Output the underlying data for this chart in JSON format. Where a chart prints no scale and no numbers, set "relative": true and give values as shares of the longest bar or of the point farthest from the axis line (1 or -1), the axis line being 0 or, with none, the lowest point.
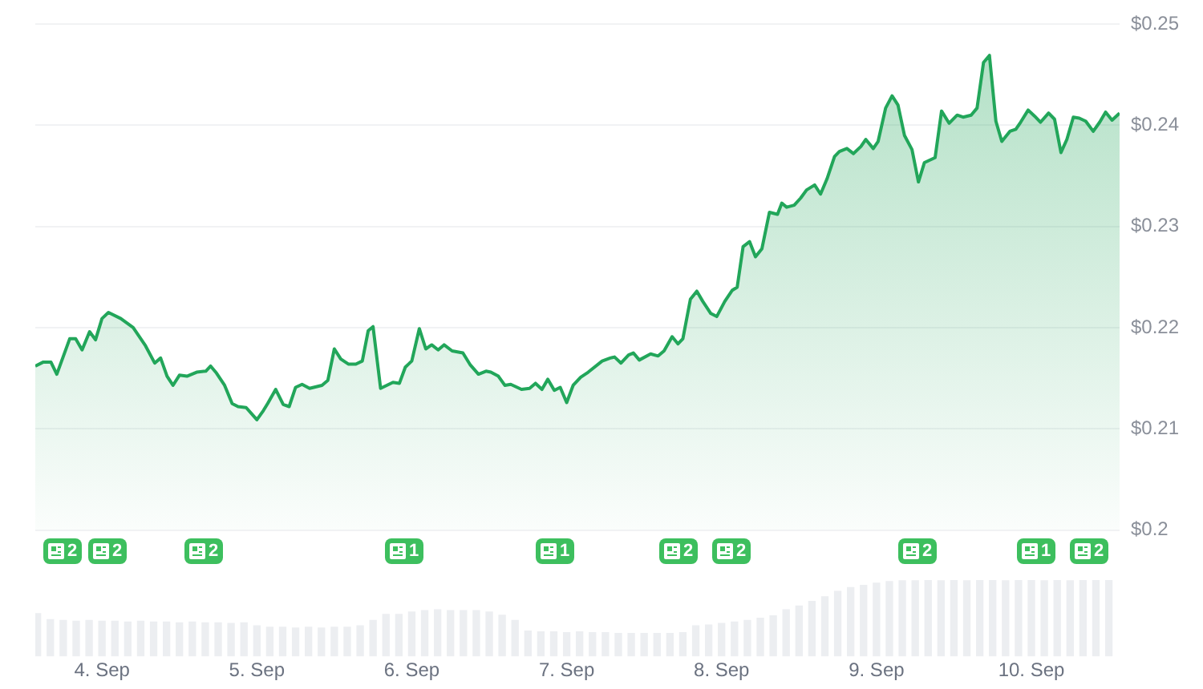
{
  "chart_data": [
    {
      "type": "area",
      "x": [
        "--09-03T13:40",
        "--09-03T14:55",
        "--09-03T16:05",
        "--09-03T17:00",
        "--09-03T19:00",
        "--09-03T19:55",
        "--09-03T20:55",
        "--09-03T22:05",
        "--09-03T23:00",
        "--09-04T00:00",
        "--09-04T01:00",
        "--09-04T02:55",
        "--09-04T04:50",
        "--09-04T06:45",
        "--09-04T08:10",
        "--09-04T09:05",
        "--09-04T10:05",
        "--09-04T11:00",
        "--09-04T12:00",
        "--09-04T13:10",
        "--09-04T14:40",
        "--09-04T16:05",
        "--09-04T16:50",
        "--09-04T17:45",
        "--09-04T19:00",
        "--09-04T20:10",
        "--09-04T21:05",
        "--09-04T22:20",
        "--09-05T00:00",
        "--09-05T01:00",
        "--09-05T01:40",
        "--09-05T02:55",
        "--09-05T04:05",
        "--09-05T05:00",
        "--09-05T06:00",
        "--09-05T07:00",
        "--09-05T08:10",
        "--09-05T10:05",
        "--09-05T11:00",
        "--09-05T12:00",
        "--09-05T13:00",
        "--09-05T14:10",
        "--09-05T15:20",
        "--09-05T16:20",
        "--09-05T17:15",
        "--09-05T18:00",
        "--09-05T19:10",
        "--09-05T21:05",
        "--09-05T22:05",
        "--09-05T23:00",
        "--09-06T00:00",
        "--09-06T01:10",
        "--09-06T02:10",
        "--09-06T03:05",
        "--09-06T04:05",
        "--09-06T05:00",
        "--09-06T06:15",
        "--09-06T07:55",
        "--09-06T09:05",
        "--09-06T10:20",
        "--09-06T11:30",
        "--09-06T12:15",
        "--09-06T13:25",
        "--09-06T14:25",
        "--09-06T15:20",
        "--09-06T17:00",
        "--09-06T18:15",
        "--09-06T19:10",
        "--09-06T20:10",
        "--09-06T21:05",
        "--09-06T22:05",
        "--09-06T23:00",
        "--09-07T00:00",
        "--09-07T01:00",
        "--09-07T02:10",
        "--09-07T03:20",
        "--09-07T05:30",
        "--09-07T06:45",
        "--09-07T07:25",
        "--09-07T08:25",
        "--09-07T09:35",
        "--09-07T10:20",
        "--09-07T11:15",
        "--09-07T13:00",
        "--09-07T14:10",
        "--09-07T15:05",
        "--09-07T16:20",
        "--09-07T17:15",
        "--09-07T18:00",
        "--09-07T19:10",
        "--09-07T20:10",
        "--09-07T21:05",
        "--09-07T22:20",
        "--09-07T23:15",
        "--09-08T00:30",
        "--09-08T01:40",
        "--09-08T02:25",
        "--09-08T03:20",
        "--09-08T04:20",
        "--09-08T05:15",
        "--09-08T06:15",
        "--09-08T07:25",
        "--09-08T08:40",
        "--09-08T09:20",
        "--09-08T10:05",
        "--09-08T11:15",
        "--09-08T12:15",
        "--09-08T13:10",
        "--09-08T14:25",
        "--09-08T15:20",
        "--09-08T16:20",
        "--09-08T17:30",
        "--09-08T18:15",
        "--09-08T19:25",
        "--09-08T20:25",
        "--09-08T21:35",
        "--09-08T22:20",
        "--09-08T23:30",
        "--09-09T00:15",
        "--09-09T01:25",
        "--09-09T02:25",
        "--09-09T03:20",
        "--09-09T04:20",
        "--09-09T05:30",
        "--09-09T06:30",
        "--09-09T07:25",
        "--09-09T09:05",
        "--09-09T10:05",
        "--09-09T11:15",
        "--09-09T12:30",
        "--09-09T13:25",
        "--09-09T14:40",
        "--09-09T15:35",
        "--09-09T16:35",
        "--09-09T17:30",
        "--09-09T18:30",
        "--09-09T19:25",
        "--09-09T20:40",
        "--09-09T21:35",
        "--09-09T22:20",
        "--09-09T23:30",
        "--09-10T00:30",
        "--09-10T01:25",
        "--09-10T02:40",
        "--09-10T03:35",
        "--09-10T04:35",
        "--09-10T05:30",
        "--09-10T06:30",
        "--09-10T07:25",
        "--09-10T08:25",
        "--09-10T09:35",
        "--09-10T10:35",
        "--09-10T11:30",
        "--09-10T12:30",
        "--09-10T13:40"
      ],
      "values": [
        0.2162,
        0.2166,
        0.2166,
        0.2154,
        0.2189,
        0.2189,
        0.2178,
        0.2196,
        0.2188,
        0.2209,
        0.2215,
        0.2209,
        0.22,
        0.2182,
        0.2165,
        0.217,
        0.2152,
        0.2143,
        0.2153,
        0.2152,
        0.2156,
        0.2157,
        0.2162,
        0.2155,
        0.2143,
        0.2125,
        0.2122,
        0.2121,
        0.2109,
        0.2118,
        0.2125,
        0.2139,
        0.2124,
        0.2122,
        0.2141,
        0.2144,
        0.214,
        0.2143,
        0.2148,
        0.2179,
        0.2169,
        0.2164,
        0.2164,
        0.2167,
        0.2197,
        0.2201,
        0.214,
        0.2146,
        0.2145,
        0.2161,
        0.2167,
        0.2199,
        0.2179,
        0.2183,
        0.2178,
        0.2183,
        0.2177,
        0.2175,
        0.2163,
        0.2154,
        0.2157,
        0.2156,
        0.2152,
        0.2143,
        0.2144,
        0.2139,
        0.214,
        0.2145,
        0.2139,
        0.2149,
        0.2138,
        0.2141,
        0.2126,
        0.2143,
        0.2151,
        0.2156,
        0.2167,
        0.217,
        0.2171,
        0.2165,
        0.2173,
        0.2175,
        0.2168,
        0.2174,
        0.2172,
        0.2177,
        0.2191,
        0.2184,
        0.2189,
        0.2228,
        0.2236,
        0.2226,
        0.2214,
        0.2211,
        0.2226,
        0.2237,
        0.224,
        0.228,
        0.2285,
        0.227,
        0.2278,
        0.2314,
        0.2312,
        0.2323,
        0.2319,
        0.2321,
        0.2328,
        0.2336,
        0.2341,
        0.2332,
        0.2347,
        0.2369,
        0.2374,
        0.2377,
        0.2372,
        0.2379,
        0.2386,
        0.2377,
        0.2384,
        0.2417,
        0.2429,
        0.242,
        0.239,
        0.2376,
        0.2344,
        0.2363,
        0.2368,
        0.2414,
        0.2402,
        0.241,
        0.2408,
        0.241,
        0.2417,
        0.2462,
        0.2469,
        0.2404,
        0.2384,
        0.2394,
        0.2396,
        0.2403,
        0.2415,
        0.2409,
        0.2403,
        0.2412,
        0.2406,
        0.2373,
        0.2386,
        0.2408,
        0.2407,
        0.2404,
        0.2394,
        0.2403,
        0.2413,
        0.2405,
        0.2412
      ],
      "color": "#22a65a",
      "xlim": [
        "--09-03T13:40",
        "--09-10T13:40"
      ],
      "ylim": [
        0.2,
        0.25
      ],
      "yticks": [
        {
          "value": 0.25,
          "label": "$0.25"
        },
        {
          "value": 0.24,
          "label": "$0.24"
        },
        {
          "value": 0.23,
          "label": "$0.23"
        },
        {
          "value": 0.22,
          "label": "$0.22"
        },
        {
          "value": 0.21,
          "label": "$0.21"
        },
        {
          "value": 0.2,
          "label": "$0.2"
        }
      ],
      "grid": "y",
      "tick_labels": "y",
      "annotations": [
        "2",
        "2",
        "2",
        "1",
        "1",
        "2",
        "2",
        "2",
        "1",
        "2"
      ]
    },
    {
      "type": "bar",
      "relative": true,
      "x": [
        "--09-03T14:00",
        "--09-03T16:00",
        "--09-03T18:00",
        "--09-03T20:00",
        "--09-03T22:00",
        "--09-04T00:00",
        "--09-04T02:00",
        "--09-04T04:00",
        "--09-04T06:00",
        "--09-04T08:00",
        "--09-04T10:00",
        "--09-04T12:00",
        "--09-04T14:00",
        "--09-04T16:00",
        "--09-04T18:00",
        "--09-04T20:00",
        "--09-04T22:00",
        "--09-05T00:00",
        "--09-05T02:00",
        "--09-05T04:00",
        "--09-05T06:00",
        "--09-05T08:00",
        "--09-05T10:00",
        "--09-05T12:00",
        "--09-05T14:00",
        "--09-05T16:00",
        "--09-05T18:00",
        "--09-05T20:00",
        "--09-05T22:00",
        "--09-06T00:00",
        "--09-06T02:00",
        "--09-06T04:00",
        "--09-06T06:00",
        "--09-06T08:00",
        "--09-06T10:00",
        "--09-06T12:00",
        "--09-06T14:00",
        "--09-06T16:00",
        "--09-06T18:00",
        "--09-06T20:00",
        "--09-06T22:00",
        "--09-07T00:00",
        "--09-07T02:00",
        "--09-07T04:00",
        "--09-07T06:00",
        "--09-07T08:00",
        "--09-07T10:00",
        "--09-07T12:00",
        "--09-07T14:00",
        "--09-07T16:00",
        "--09-07T18:00",
        "--09-07T20:00",
        "--09-07T22:00",
        "--09-08T00:00",
        "--09-08T02:00",
        "--09-08T04:00",
        "--09-08T06:00",
        "--09-08T08:00",
        "--09-08T10:00",
        "--09-08T12:00",
        "--09-08T14:00",
        "--09-08T16:00",
        "--09-08T18:00",
        "--09-08T20:00",
        "--09-08T22:00",
        "--09-09T00:00",
        "--09-09T02:00",
        "--09-09T04:00",
        "--09-09T06:00",
        "--09-09T08:00",
        "--09-09T10:00",
        "--09-09T12:00",
        "--09-09T14:00",
        "--09-09T16:00",
        "--09-09T18:00",
        "--09-09T20:00",
        "--09-09T22:00",
        "--09-10T00:00",
        "--09-10T02:00",
        "--09-10T04:00",
        "--09-10T06:00",
        "--09-10T08:00",
        "--09-10T10:00",
        "--09-10T12:00"
      ],
      "values": [
        0.56,
        0.48,
        0.47,
        0.46,
        0.47,
        0.46,
        0.46,
        0.45,
        0.46,
        0.45,
        0.45,
        0.44,
        0.45,
        0.44,
        0.44,
        0.43,
        0.44,
        0.4,
        0.38,
        0.38,
        0.37,
        0.38,
        0.37,
        0.38,
        0.38,
        0.4,
        0.47,
        0.55,
        0.55,
        0.58,
        0.6,
        0.61,
        0.6,
        0.6,
        0.6,
        0.58,
        0.54,
        0.47,
        0.33,
        0.32,
        0.32,
        0.31,
        0.32,
        0.31,
        0.31,
        0.3,
        0.3,
        0.3,
        0.3,
        0.3,
        0.31,
        0.4,
        0.41,
        0.43,
        0.45,
        0.47,
        0.5,
        0.53,
        0.61,
        0.66,
        0.72,
        0.78,
        0.85,
        0.9,
        0.93,
        0.96,
        0.98,
        0.99,
        0.99,
        1,
        0.99,
        1,
        0.99,
        1,
        1,
        0.99,
        1,
        1,
        0.99,
        1,
        0.99,
        1,
        1,
        1
      ],
      "color": "#eceef1",
      "xlim": [
        "--09-03T13:40",
        "--09-10T13:40"
      ],
      "xticks": [
        {
          "value": "--09-04",
          "label": "4. Sep"
        },
        {
          "value": "--09-05",
          "label": "5. Sep"
        },
        {
          "value": "--09-06",
          "label": "6. Sep"
        },
        {
          "value": "--09-07",
          "label": "7. Sep"
        },
        {
          "value": "--09-08",
          "label": "8. Sep"
        },
        {
          "value": "--09-09",
          "label": "9. Sep"
        },
        {
          "value": "--09-10",
          "label": "10. Sep"
        }
      ],
      "tick_labels": "x"
    }
  ]
}
